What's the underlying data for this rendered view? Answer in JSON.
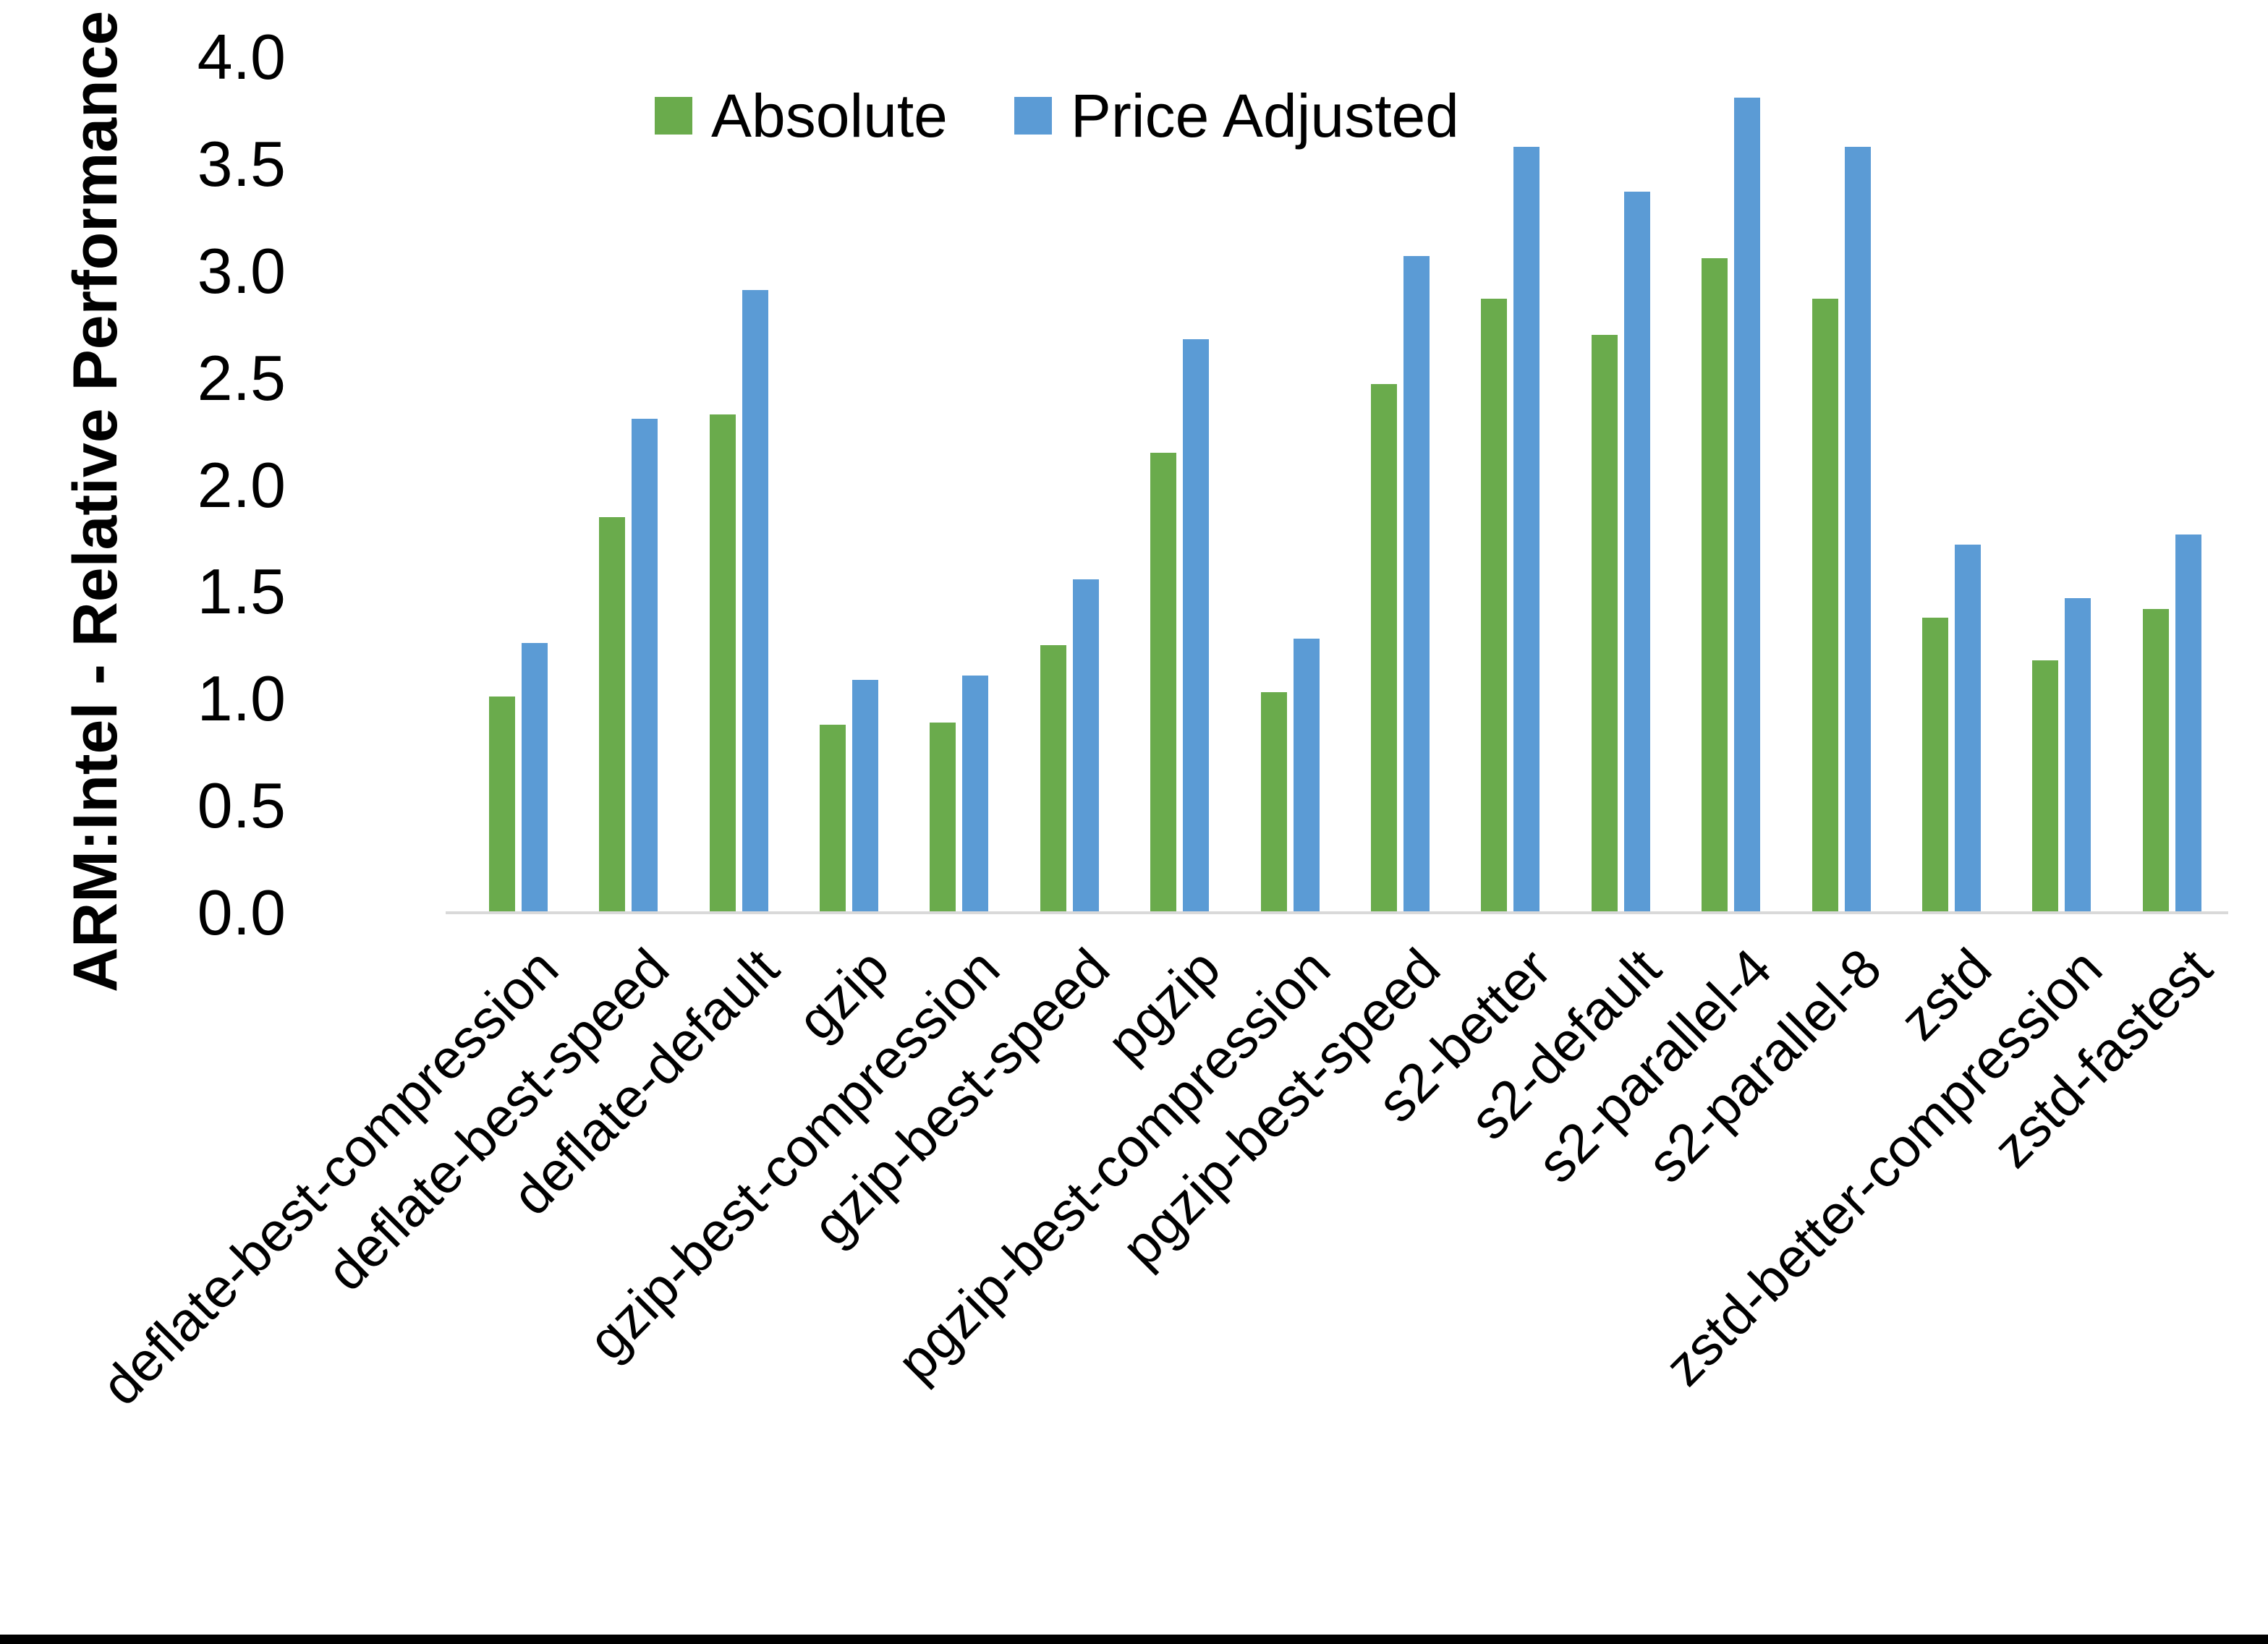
{
  "figure": {
    "background_color": "#ffffff",
    "bottom_border_color": "#000000"
  },
  "chart_data": {
    "type": "bar",
    "title": "",
    "xlabel": "",
    "ylabel": "ARM:Intel - Relative Performance",
    "ylim": [
      0.0,
      4.0
    ],
    "y_ticks": [
      "0.0",
      "0.5",
      "1.0",
      "1.5",
      "2.0",
      "2.5",
      "3.0",
      "3.5",
      "4.0"
    ],
    "grid": false,
    "legend_position": "top-center",
    "axis_line_color": "#d9d9d9",
    "x_label_rotation_deg": 45,
    "categories": [
      "deflate-best-compression",
      "deflate-best-speed",
      "deflate-default",
      "gzip",
      "gzip-best-compression",
      "gzip-best-speed",
      "pgzip",
      "pgzip-best-compression",
      "pgzip-best-speed",
      "s2-better",
      "s2-default",
      "s2-parallel-4",
      "s2-parallel-8",
      "zstd",
      "zstd-better-compression",
      "zstd-fastest"
    ],
    "series": [
      {
        "name": "Absolute",
        "color": "#6aab4c",
        "values": [
          1.01,
          1.85,
          2.33,
          0.88,
          0.89,
          1.25,
          2.15,
          1.03,
          2.47,
          2.87,
          2.7,
          3.06,
          2.87,
          1.38,
          1.18,
          1.42
        ]
      },
      {
        "name": "Price Adjusted",
        "color": "#5b9bd5",
        "values": [
          1.26,
          2.31,
          2.91,
          1.09,
          1.11,
          1.56,
          2.68,
          1.28,
          3.07,
          3.58,
          3.37,
          3.81,
          3.58,
          1.72,
          1.47,
          1.77
        ]
      }
    ]
  }
}
